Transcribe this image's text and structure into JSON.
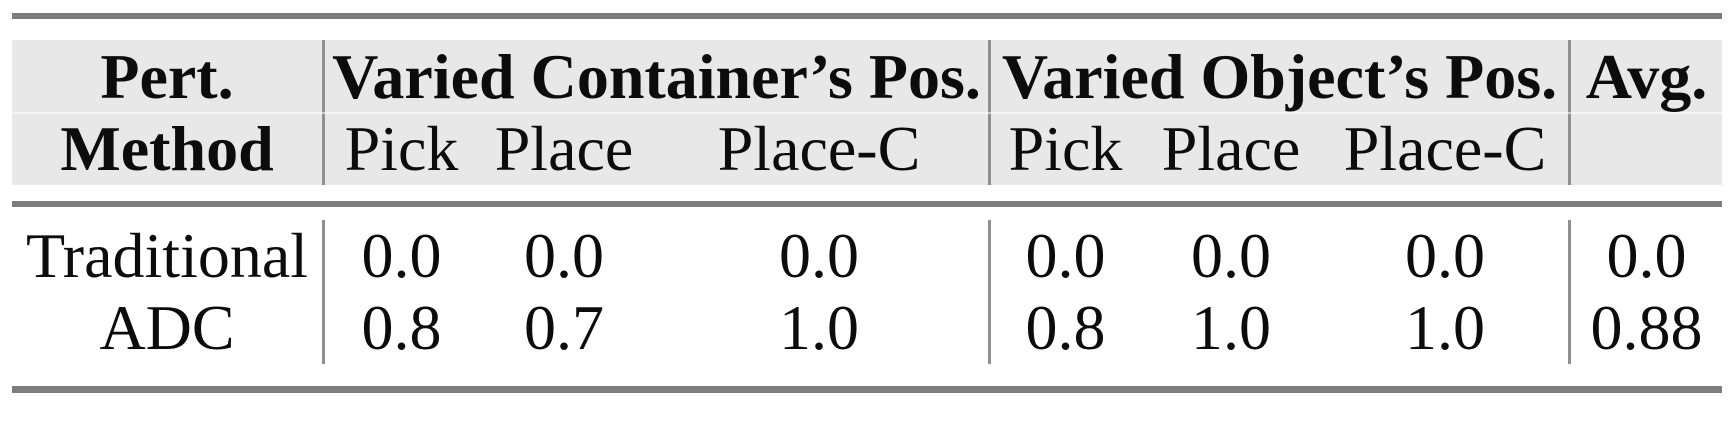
{
  "table": {
    "header": {
      "stub": {
        "line1": "Pert.",
        "line2": "Method"
      },
      "groups": [
        {
          "label": "Varied Container’s Pos.",
          "subcols": [
            "Pick",
            "Place",
            "Place-C"
          ]
        },
        {
          "label": "Varied Object’s Pos.",
          "subcols": [
            "Pick",
            "Place",
            "Place-C"
          ]
        }
      ],
      "avg_label": "Avg."
    },
    "rows": [
      {
        "method": "Traditional",
        "container": [
          "0.0",
          "0.0",
          "0.0"
        ],
        "object": [
          "0.0",
          "0.0",
          "0.0"
        ],
        "avg": "0.0"
      },
      {
        "method": "ADC",
        "container": [
          "0.8",
          "0.7",
          "1.0"
        ],
        "object": [
          "0.8",
          "1.0",
          "1.0"
        ],
        "avg": "0.88"
      }
    ],
    "colors": {
      "header_bg": "#e8e8e8",
      "rule": "#7d7d7d",
      "separator": "#8f8f8f",
      "text": "#0c0c0c"
    }
  }
}
